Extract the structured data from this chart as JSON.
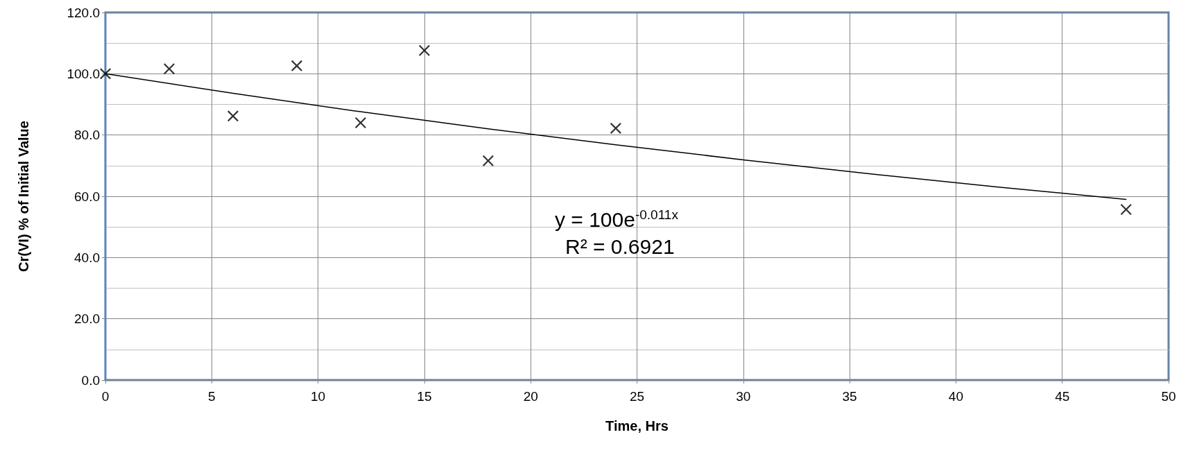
{
  "chart_data": {
    "type": "scatter",
    "xlabel": "Time, Hrs",
    "ylabel": "Cr(VI) % of Initial Value",
    "series": [
      {
        "color": "#000000",
        "marker": "cross",
        "x": [
          0,
          3,
          6,
          9,
          12,
          15,
          18,
          24,
          48
        ],
        "values": [
          100,
          101.6,
          86.2,
          102.6,
          84.0,
          107.6,
          71.6,
          82.2,
          55.7
        ]
      },
      {
        "type": "line",
        "color": "#000000",
        "marker": "none",
        "line_style": "solid",
        "x": [
          0,
          6,
          12,
          18,
          24,
          30,
          36,
          42,
          48
        ],
        "values": [
          100,
          93.6,
          87.6,
          82.0,
          76.8,
          71.9,
          67.3,
          63.0,
          59.0
        ]
      }
    ],
    "xlim": [
      0,
      50
    ],
    "xticks": [
      0,
      5,
      10,
      15,
      20,
      25,
      30,
      35,
      40,
      45,
      50
    ],
    "ylim": [
      0,
      120
    ],
    "yticks": [
      {
        "value": 0,
        "label": "0.0"
      },
      {
        "value": 20,
        "label": "20.0"
      },
      {
        "value": 40,
        "label": "40.0"
      },
      {
        "value": 60,
        "label": "60.0"
      },
      {
        "value": 80,
        "label": "80.0"
      },
      {
        "value": 100,
        "label": "100.0"
      },
      {
        "value": 120,
        "label": "120.0"
      }
    ],
    "grid": true,
    "annotations": [
      "y = 100e$^{-0.011x}$",
      "R² = 0.6921"
    ]
  }
}
